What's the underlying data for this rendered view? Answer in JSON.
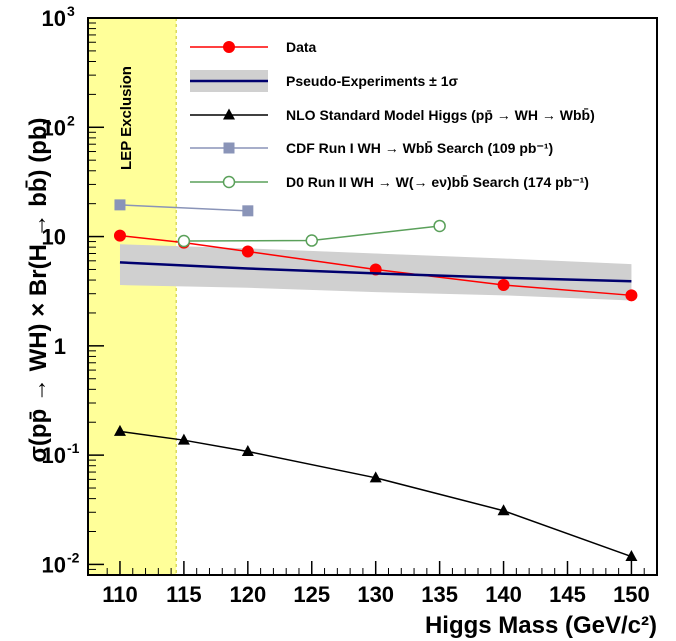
{
  "chart_data": {
    "type": "line",
    "xlabel": "Higgs Mass (GeV/c²)",
    "ylabel": "σ(pp̄ → WH) × Br(H → bb̄) (pb)",
    "xlim": [
      107.5,
      152
    ],
    "ylim": [
      0.008,
      1000
    ],
    "yscale": "log",
    "grid": false,
    "legend_position": "top-right",
    "x_ticks": [
      110,
      115,
      120,
      125,
      130,
      135,
      140,
      145,
      150
    ],
    "x_tick_labels": [
      "110",
      "115",
      "120",
      "125",
      "130",
      "135",
      "140",
      "145",
      "150"
    ],
    "y_ticks": [
      {
        "value": 0.01,
        "base": "10",
        "exp": "-2"
      },
      {
        "value": 0.1,
        "base": "10",
        "exp": "-1"
      },
      {
        "value": 1,
        "base": "1",
        "exp": ""
      },
      {
        "value": 10,
        "base": "10",
        "exp": ""
      },
      {
        "value": 100,
        "base": "10",
        "exp": "2"
      },
      {
        "value": 1000,
        "base": "10",
        "exp": "3"
      }
    ],
    "exclusion_region": {
      "label": "LEP Exclusion",
      "x_range": [
        107.5,
        114.4
      ],
      "color": "#ffff99"
    },
    "band": {
      "name": "Pseudo-Experiments ± 1σ",
      "x": [
        110,
        120,
        130,
        140,
        150
      ],
      "low": [
        3.6,
        3.4,
        3.1,
        2.9,
        2.6
      ],
      "high": [
        8.5,
        7.8,
        7.0,
        6.3,
        5.6
      ],
      "color": "#d0d0d0"
    },
    "series": [
      {
        "name": "Data",
        "color": "#ff0000",
        "marker": "circle",
        "x": [
          110,
          115,
          120,
          130,
          140,
          150
        ],
        "y": [
          10.2,
          8.8,
          7.3,
          5.0,
          3.6,
          2.9
        ]
      },
      {
        "name": "Pseudo-Experiments ± 1σ",
        "color": "#00006e",
        "marker": "none",
        "x": [
          110,
          120,
          130,
          140,
          150
        ],
        "y": [
          5.8,
          5.1,
          4.6,
          4.2,
          3.9
        ]
      },
      {
        "name": "NLO Standard Model Higgs (pp̄ → WH → Wbb̄)",
        "color": "#000000",
        "marker": "triangle",
        "x": [
          110,
          115,
          120,
          130,
          140,
          150
        ],
        "y": [
          0.165,
          0.137,
          0.108,
          0.062,
          0.031,
          0.0118
        ]
      },
      {
        "name": "CDF Run I WH → Wbb̄ Search (109 pb⁻¹)",
        "color": "#8a94b8",
        "marker": "square",
        "x": [
          110,
          120
        ],
        "y": [
          19.5,
          17.2
        ]
      },
      {
        "name": "D0 Run II WH → W(→ eν)bb̄ Search (174 pb⁻¹)",
        "color": "#5aa05a",
        "marker": "open-circle",
        "x": [
          115,
          125,
          135
        ],
        "y": [
          9.1,
          9.2,
          12.5
        ]
      }
    ]
  }
}
